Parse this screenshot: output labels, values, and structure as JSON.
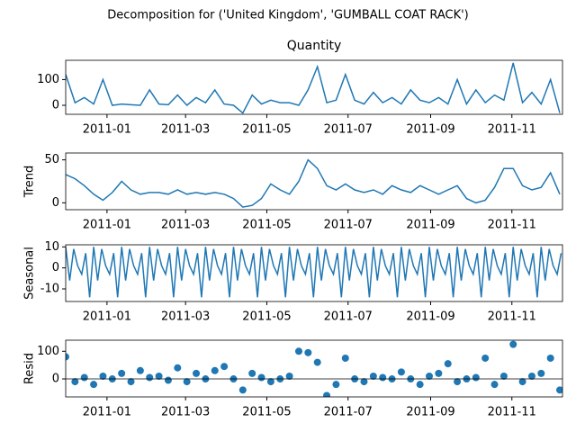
{
  "title": "Decomposition for ('United Kingdom', 'GUMBALL COAT RACK')",
  "chart_data": [
    {
      "type": "line",
      "title": "Quantity",
      "x": [
        0,
        7,
        14,
        21,
        28,
        35,
        42,
        49,
        56,
        63,
        70,
        77,
        84,
        91,
        98,
        105,
        112,
        119,
        126,
        133,
        140,
        147,
        154,
        161,
        168,
        175,
        182,
        189,
        196,
        203,
        210,
        217,
        224,
        231,
        238,
        245,
        252,
        259,
        266,
        273,
        280,
        287,
        294,
        301,
        308,
        315,
        322,
        329,
        336,
        343,
        350,
        357,
        364,
        371
      ],
      "series": [
        {
          "color": "#1f77b4",
          "values": [
            120,
            10,
            30,
            5,
            100,
            0,
            5,
            2,
            0,
            60,
            5,
            2,
            40,
            0,
            30,
            10,
            60,
            5,
            0,
            -30,
            40,
            5,
            20,
            10,
            10,
            0,
            60,
            150,
            10,
            20,
            120,
            20,
            5,
            50,
            10,
            30,
            5,
            60,
            20,
            10,
            30,
            5,
            100,
            5,
            60,
            10,
            40,
            20,
            165,
            10,
            50,
            5,
            100,
            -30
          ]
        }
      ],
      "xlim": [
        0,
        373
      ],
      "xticks": [
        {
          "value": 31,
          "label": "2011-01"
        },
        {
          "value": 90,
          "label": "2011-03"
        },
        {
          "value": 151,
          "label": "2011-05"
        },
        {
          "value": 212,
          "label": "2011-07"
        },
        {
          "value": 274,
          "label": "2011-09"
        },
        {
          "value": 335,
          "label": "2011-11"
        }
      ],
      "ylim": [
        -35,
        175
      ],
      "yticks": [
        0,
        100
      ]
    },
    {
      "type": "line",
      "ylabel": "Trend",
      "x": [
        0,
        7,
        14,
        21,
        28,
        35,
        42,
        49,
        56,
        63,
        70,
        77,
        84,
        91,
        98,
        105,
        112,
        119,
        126,
        133,
        140,
        147,
        154,
        161,
        168,
        175,
        182,
        189,
        196,
        203,
        210,
        217,
        224,
        231,
        238,
        245,
        252,
        259,
        266,
        273,
        280,
        287,
        294,
        301,
        308,
        315,
        322,
        329,
        336,
        343,
        350,
        357,
        364,
        371
      ],
      "series": [
        {
          "color": "#1f77b4",
          "values": [
            33,
            28,
            20,
            10,
            3,
            12,
            25,
            15,
            10,
            12,
            12,
            10,
            15,
            10,
            12,
            10,
            12,
            10,
            5,
            -5,
            -3,
            5,
            22,
            15,
            10,
            25,
            50,
            40,
            20,
            15,
            22,
            15,
            12,
            15,
            10,
            20,
            15,
            12,
            20,
            15,
            10,
            15,
            20,
            5,
            0,
            3,
            18,
            40,
            40,
            20,
            15,
            18,
            35,
            10
          ]
        }
      ],
      "xlim": [
        0,
        373
      ],
      "xticks": [
        {
          "value": 31,
          "label": "2011-01"
        },
        {
          "value": 90,
          "label": "2011-03"
        },
        {
          "value": 151,
          "label": "2011-05"
        },
        {
          "value": 212,
          "label": "2011-07"
        },
        {
          "value": 274,
          "label": "2011-09"
        },
        {
          "value": 335,
          "label": "2011-11"
        }
      ],
      "ylim": [
        -8,
        58
      ],
      "yticks": [
        0,
        50
      ]
    },
    {
      "type": "line",
      "ylabel": "Seasonal",
      "x": [
        0,
        3,
        6,
        9,
        12,
        15,
        18,
        21,
        24,
        27,
        30,
        33,
        36,
        39,
        42,
        45,
        48,
        51,
        54,
        57,
        60,
        63,
        66,
        69,
        72,
        75,
        78,
        81,
        84,
        87,
        90,
        93,
        96,
        99,
        102,
        105,
        108,
        111,
        114,
        117,
        120,
        123,
        126,
        129,
        132,
        135,
        138,
        141,
        144,
        147,
        150,
        153,
        156,
        159,
        162,
        165,
        168,
        171,
        174,
        177,
        180,
        183,
        186,
        189,
        192,
        195,
        198,
        201,
        204,
        207,
        210,
        213,
        216,
        219,
        222,
        225,
        228,
        231,
        234,
        237,
        240,
        243,
        246,
        249,
        252,
        255,
        258,
        261,
        264,
        267,
        270,
        273,
        276,
        279,
        282,
        285,
        288,
        291,
        294,
        297,
        300,
        303,
        306,
        309,
        312,
        315,
        318,
        321,
        324,
        327,
        330,
        333,
        336,
        339,
        342,
        345,
        348,
        351,
        354,
        357,
        360,
        363,
        366,
        369,
        372
      ],
      "series": [
        {
          "color": "#1f77b4",
          "values": [
            10,
            -6,
            9,
            1,
            -3,
            7,
            -14,
            10,
            -6,
            9,
            1,
            -3,
            7,
            -14,
            10,
            -6,
            9,
            1,
            -3,
            7,
            -14,
            10,
            -6,
            9,
            1,
            -3,
            7,
            -14,
            10,
            -6,
            9,
            1,
            -3,
            7,
            -14,
            10,
            -6,
            9,
            1,
            -3,
            7,
            -14,
            10,
            -6,
            9,
            1,
            -3,
            7,
            -14,
            10,
            -6,
            9,
            1,
            -3,
            7,
            -14,
            10,
            -6,
            9,
            1,
            -3,
            7,
            -14,
            10,
            -6,
            9,
            1,
            -3,
            7,
            -14,
            10,
            -6,
            9,
            1,
            -3,
            7,
            -14,
            10,
            -6,
            9,
            1,
            -3,
            7,
            -14,
            10,
            -6,
            9,
            1,
            -3,
            7,
            -14,
            10,
            -6,
            9,
            1,
            -3,
            7,
            -14,
            10,
            -6,
            9,
            1,
            -3,
            7,
            -14,
            10,
            -6,
            9,
            1,
            -3,
            7,
            -14,
            10,
            -6,
            9,
            1,
            -3,
            7,
            -14,
            10,
            -6,
            9,
            1,
            -3,
            7
          ]
        }
      ],
      "xlim": [
        0,
        373
      ],
      "xticks": [
        {
          "value": 31,
          "label": "2011-01"
        },
        {
          "value": 90,
          "label": "2011-03"
        },
        {
          "value": 151,
          "label": "2011-05"
        },
        {
          "value": 212,
          "label": "2011-07"
        },
        {
          "value": 274,
          "label": "2011-09"
        },
        {
          "value": 335,
          "label": "2011-11"
        }
      ],
      "ylim": [
        -16,
        11
      ],
      "yticks": [
        -10,
        0,
        10
      ]
    },
    {
      "type": "scatter",
      "ylabel": "Resid",
      "x": [
        0,
        7,
        14,
        21,
        28,
        35,
        42,
        49,
        56,
        63,
        70,
        77,
        84,
        91,
        98,
        105,
        112,
        119,
        126,
        133,
        140,
        147,
        154,
        161,
        168,
        175,
        182,
        189,
        196,
        203,
        210,
        217,
        224,
        231,
        238,
        245,
        252,
        259,
        266,
        273,
        280,
        287,
        294,
        301,
        308,
        315,
        322,
        329,
        336,
        343,
        350,
        357,
        364,
        371
      ],
      "series": [
        {
          "color": "#1f77b4",
          "values": [
            80,
            -10,
            5,
            -20,
            10,
            0,
            20,
            -10,
            30,
            5,
            10,
            -5,
            40,
            -10,
            20,
            0,
            30,
            45,
            0,
            -40,
            20,
            5,
            -10,
            0,
            10,
            100,
            95,
            60,
            -60,
            -20,
            75,
            0,
            -10,
            10,
            5,
            0,
            25,
            0,
            -20,
            10,
            20,
            55,
            -10,
            0,
            5,
            75,
            -20,
            10,
            125,
            -10,
            10,
            20,
            75,
            -40
          ]
        }
      ],
      "xlim": [
        0,
        373
      ],
      "xticks": [
        {
          "value": 31,
          "label": "2011-01"
        },
        {
          "value": 90,
          "label": "2011-03"
        },
        {
          "value": 151,
          "label": "2011-05"
        },
        {
          "value": 212,
          "label": "2011-07"
        },
        {
          "value": 274,
          "label": "2011-09"
        },
        {
          "value": 335,
          "label": "2011-11"
        }
      ],
      "ylim": [
        -65,
        140
      ],
      "yticks": [
        0,
        100
      ]
    }
  ]
}
